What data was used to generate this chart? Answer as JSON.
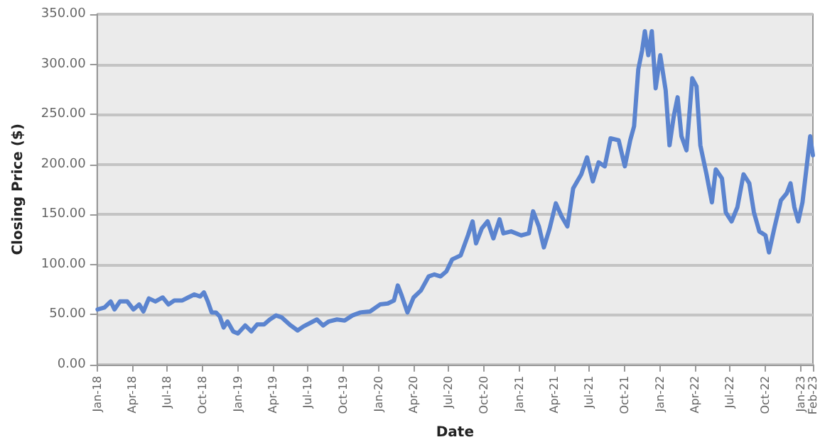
{
  "chart_data": {
    "type": "line",
    "xlabel": "Date",
    "ylabel": "Closing Price ($)",
    "grid": "y",
    "marker": "none",
    "line_style": "solid",
    "xlim": [
      "2018-01-01",
      "2023-02-01"
    ],
    "xticks": [
      {
        "value": "2018-01-01",
        "label": "Jan-18"
      },
      {
        "value": "2018-04-01",
        "label": "Apr-18"
      },
      {
        "value": "2018-07-01",
        "label": "Jul-18"
      },
      {
        "value": "2018-10-01",
        "label": "Oct-18"
      },
      {
        "value": "2019-01-01",
        "label": "Jan-19"
      },
      {
        "value": "2019-04-01",
        "label": "Apr-19"
      },
      {
        "value": "2019-07-01",
        "label": "Jul-19"
      },
      {
        "value": "2019-10-01",
        "label": "Oct-19"
      },
      {
        "value": "2020-01-01",
        "label": "Jan-20"
      },
      {
        "value": "2020-04-01",
        "label": "Apr-20"
      },
      {
        "value": "2020-07-01",
        "label": "Jul-20"
      },
      {
        "value": "2020-10-01",
        "label": "Oct-20"
      },
      {
        "value": "2021-01-01",
        "label": "Jan-21"
      },
      {
        "value": "2021-04-01",
        "label": "Apr-21"
      },
      {
        "value": "2021-07-01",
        "label": "Jul-21"
      },
      {
        "value": "2021-10-01",
        "label": "Oct-21"
      },
      {
        "value": "2022-01-01",
        "label": "Jan-22"
      },
      {
        "value": "2022-04-01",
        "label": "Apr-22"
      },
      {
        "value": "2022-07-01",
        "label": "Jul-22"
      },
      {
        "value": "2022-10-01",
        "label": "Oct-22"
      },
      {
        "value": "2023-01-01",
        "label": "Jan-23"
      },
      {
        "value": "2023-02-01",
        "label": "Feb-23"
      }
    ],
    "ylim": [
      0,
      350
    ],
    "yticks": [
      {
        "value": 0,
        "label": "0.00"
      },
      {
        "value": 50,
        "label": "50.00"
      },
      {
        "value": 100,
        "label": "100.00"
      },
      {
        "value": 150,
        "label": "150.00"
      },
      {
        "value": 200,
        "label": "200.00"
      },
      {
        "value": 250,
        "label": "250.00"
      },
      {
        "value": 300,
        "label": "300.00"
      },
      {
        "value": 350,
        "label": "350.00"
      }
    ],
    "x": [
      "2018-01-02",
      "2018-01-20",
      "2018-02-05",
      "2018-02-15",
      "2018-03-01",
      "2018-03-20",
      "2018-04-05",
      "2018-04-20",
      "2018-05-01",
      "2018-05-15",
      "2018-06-01",
      "2018-06-20",
      "2018-07-05",
      "2018-07-20",
      "2018-08-10",
      "2018-08-25",
      "2018-09-10",
      "2018-09-25",
      "2018-10-05",
      "2018-10-15",
      "2018-10-25",
      "2018-11-05",
      "2018-11-15",
      "2018-11-25",
      "2018-12-05",
      "2018-12-20",
      "2019-01-01",
      "2019-01-20",
      "2019-02-05",
      "2019-02-20",
      "2019-03-10",
      "2019-03-25",
      "2019-04-10",
      "2019-04-25",
      "2019-05-15",
      "2019-06-05",
      "2019-06-20",
      "2019-07-10",
      "2019-07-25",
      "2019-08-10",
      "2019-08-25",
      "2019-09-15",
      "2019-10-05",
      "2019-10-25",
      "2019-11-15",
      "2019-12-10",
      "2020-01-05",
      "2020-01-25",
      "2020-02-10",
      "2020-02-20",
      "2020-03-01",
      "2020-03-16",
      "2020-04-01",
      "2020-04-20",
      "2020-05-10",
      "2020-05-25",
      "2020-06-10",
      "2020-06-25",
      "2020-07-10",
      "2020-08-01",
      "2020-08-20",
      "2020-09-01",
      "2020-09-10",
      "2020-09-25",
      "2020-10-10",
      "2020-10-25",
      "2020-11-10",
      "2020-11-20",
      "2020-12-10",
      "2021-01-05",
      "2021-01-25",
      "2021-02-05",
      "2021-02-20",
      "2021-03-05",
      "2021-03-20",
      "2021-04-05",
      "2021-04-20",
      "2021-05-05",
      "2021-05-20",
      "2021-06-10",
      "2021-06-25",
      "2021-07-10",
      "2021-07-25",
      "2021-08-10",
      "2021-08-25",
      "2021-09-15",
      "2021-10-01",
      "2021-10-15",
      "2021-10-25",
      "2021-11-05",
      "2021-11-15",
      "2021-11-22",
      "2021-12-01",
      "2021-12-10",
      "2021-12-20",
      "2022-01-01",
      "2022-01-15",
      "2022-01-25",
      "2022-02-05",
      "2022-02-15",
      "2022-02-25",
      "2022-03-10",
      "2022-03-25",
      "2022-04-05",
      "2022-04-15",
      "2022-05-01",
      "2022-05-15",
      "2022-05-25",
      "2022-06-10",
      "2022-06-20",
      "2022-07-05",
      "2022-07-20",
      "2022-08-05",
      "2022-08-20",
      "2022-09-01",
      "2022-09-15",
      "2022-10-01",
      "2022-10-10",
      "2022-10-25",
      "2022-11-10",
      "2022-11-25",
      "2022-12-05",
      "2022-12-15",
      "2022-12-25",
      "2023-01-05",
      "2023-01-15",
      "2023-01-25",
      "2023-02-01"
    ],
    "series": [
      {
        "color": "#5b84cf",
        "values": [
          55,
          57,
          63,
          55,
          63,
          63,
          55,
          60,
          53,
          66,
          63,
          67,
          60,
          64,
          64,
          67,
          70,
          68,
          72,
          63,
          52,
          52,
          48,
          37,
          43,
          33,
          31,
          39,
          33,
          40,
          40,
          45,
          49,
          47,
          40,
          34,
          38,
          42,
          45,
          39,
          43,
          45,
          44,
          49,
          52,
          53,
          60,
          61,
          64,
          79,
          69,
          52,
          67,
          74,
          88,
          90,
          88,
          93,
          105,
          109,
          129,
          143,
          121,
          136,
          143,
          126,
          145,
          131,
          133,
          129,
          131,
          153,
          138,
          117,
          136,
          161,
          148,
          138,
          176,
          190,
          207,
          183,
          202,
          198,
          226,
          224,
          198,
          224,
          238,
          295,
          314,
          333,
          309,
          333,
          276,
          309,
          274,
          219,
          248,
          267,
          228,
          214,
          286,
          278,
          219,
          190,
          162,
          195,
          186,
          152,
          143,
          157,
          190,
          181,
          152,
          133,
          129,
          112,
          138,
          164,
          171,
          181,
          157,
          143,
          162,
          195,
          228,
          209
        ]
      }
    ]
  }
}
